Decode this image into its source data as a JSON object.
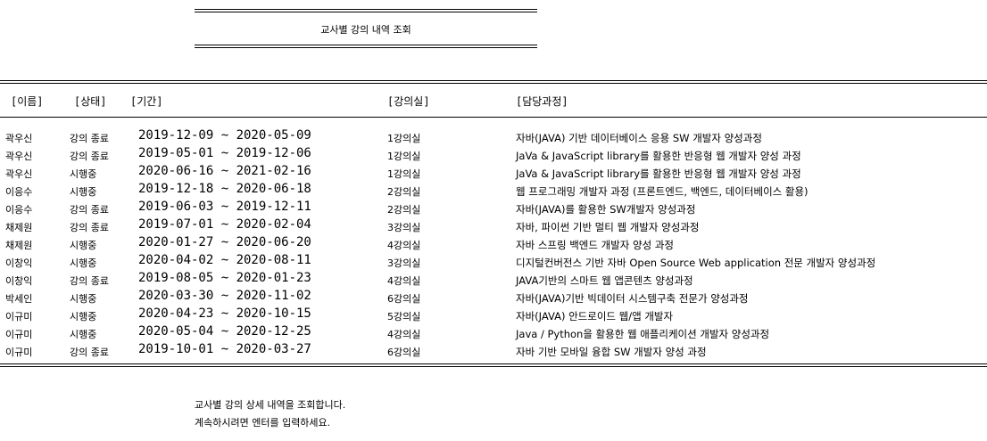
{
  "title": "교사별 강의 내역 조회",
  "headers": {
    "name": "[이름]",
    "status": "[상태]",
    "period": "[기간]",
    "room": "[강의실]",
    "course": "[담당과정]"
  },
  "rows": [
    {
      "name": "곽우신",
      "status": "강의 종료",
      "period": "2019-12-09 ~ 2020-05-09",
      "room": "1강의실",
      "course": "자바(JAVA) 기반 데이터베이스 응용 SW 개발자 양성과정"
    },
    {
      "name": "곽우신",
      "status": "강의 종료",
      "period": "2019-05-01 ~ 2019-12-06",
      "room": "1강의실",
      "course": "JaVa & JavaScript library를 활용한 반응형 웹 개발자 양성 과정"
    },
    {
      "name": "곽우신",
      "status": "시행중",
      "period": "2020-06-16 ~ 2021-02-16",
      "room": "1강의실",
      "course": "JaVa & JavaScript library를 활용한 반응형 웹 개발자 양성 과정"
    },
    {
      "name": "이응수",
      "status": "시행중",
      "period": "2019-12-18 ~ 2020-06-18",
      "room": "2강의실",
      "course": "웹 프로그래밍 개발자 과정 (프론트엔드, 백엔드, 데이터베이스 활용)"
    },
    {
      "name": "이응수",
      "status": "강의 종료",
      "period": "2019-06-03 ~ 2019-12-11",
      "room": "2강의실",
      "course": "자바(JAVA)를 활용한 SW개발자 양성과정"
    },
    {
      "name": "채제원",
      "status": "강의 종료",
      "period": "2019-07-01 ~ 2020-02-04",
      "room": "3강의실",
      "course": "자바, 파이썬 기반 멀티 웹 개발자 양성과정"
    },
    {
      "name": "채제원",
      "status": "시행중",
      "period": "2020-01-27 ~ 2020-06-20",
      "room": "4강의실",
      "course": "자바 스프링 백엔드 개발자 양성 과정"
    },
    {
      "name": "이창익",
      "status": "시행중",
      "period": "2020-04-02 ~ 2020-08-11",
      "room": "3강의실",
      "course": "디지털컨버전스 기반 자바 Open Source Web application 전문 개발자 양성과정"
    },
    {
      "name": "이창익",
      "status": "강의 종료",
      "period": "2019-08-05 ~ 2020-01-23",
      "room": "4강의실",
      "course": "JAVA기반의 스마트 웹 앱콘텐츠 양성과정"
    },
    {
      "name": "박세인",
      "status": "시행중",
      "period": "2020-03-30 ~ 2020-11-02",
      "room": "6강의실",
      "course": "자바(JAVA)기반 빅데이터 시스템구축 전문가 양성과정"
    },
    {
      "name": "이규미",
      "status": "시행중",
      "period": "2020-04-23 ~ 2020-10-15",
      "room": "5강의실",
      "course": "자바(JAVA) 안드로이드 웹/앱 개발자"
    },
    {
      "name": "이규미",
      "status": "시행중",
      "period": "2020-05-04 ~ 2020-12-25",
      "room": "4강의실",
      "course": "Java / Python을 활용한 웹 애플리케이션 개발자 양성과정"
    },
    {
      "name": "이규미",
      "status": "강의 종료",
      "period": "2019-10-01 ~ 2020-03-27",
      "room": "6강의실",
      "course": "자바 기반 모바일 융합 SW 개발자 양성 과정"
    }
  ],
  "footer": {
    "line1": "교사별 강의 상세 내역을 조회합니다.",
    "line2": "계속하시려면 엔터를 입력하세요."
  }
}
